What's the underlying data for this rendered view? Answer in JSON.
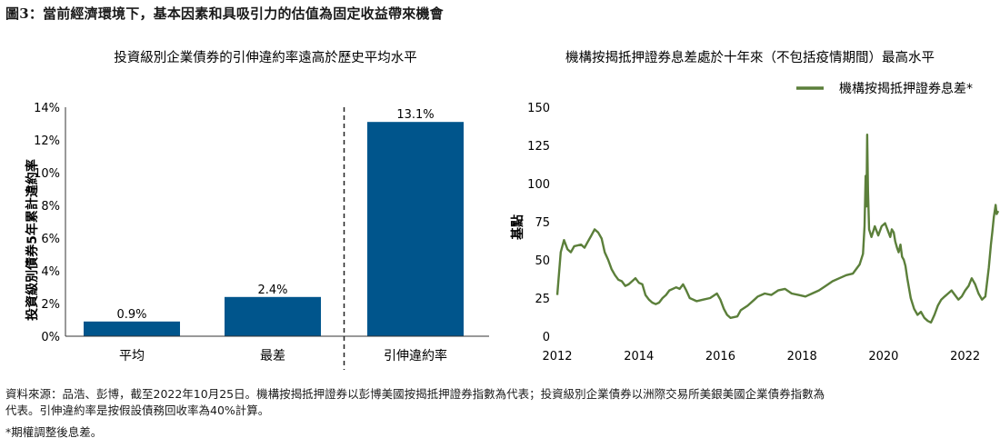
{
  "figure_title": "圖3：當前經濟環境下，基本因素和具吸引力的估值為固定收益帶來機會",
  "footnote_source": "資料來源：品浩、彭博，截至2022年10月25日。機構按揭抵押證券以彭博美國按揭抵押證券指數為代表；投資級別企業債券以洲際交易所美銀美國企業債券指數為",
  "footnote_source_cont": "代表。引伸違約率是按假設債務回收率為40%計算。",
  "footnote_note": "*期權調整後息差。",
  "chart_data": [
    {
      "type": "bar",
      "title": "投資級別企業債券的引伸違約率遠高於歷史平均水平",
      "ylabel": "投資級別債券5年累計違約率",
      "xlabel": "",
      "categories": [
        "平均",
        "最差",
        "引伸違約率"
      ],
      "values": [
        0.9,
        2.4,
        13.1
      ],
      "data_labels": [
        "0.9%",
        "2.4%",
        "13.1%"
      ],
      "ylim": [
        0,
        14
      ],
      "yticks": [
        "0%",
        "2%",
        "4%",
        "6%",
        "8%",
        "10%",
        "12%",
        "14%"
      ],
      "color": "#00558c",
      "divider_after_category": "最差",
      "grid": false
    },
    {
      "type": "line",
      "title": "機構按揭抵押證券息差處於十年來（不包括疫情期間）最高水平",
      "ylabel": "基點",
      "xlabel": "",
      "ylim": [
        0,
        150
      ],
      "yticks": [
        "0",
        "25",
        "50",
        "75",
        "100",
        "125",
        "150"
      ],
      "xlim": [
        "2012-01-01",
        "2022-11-01"
      ],
      "xticks": [
        "2012",
        "2014",
        "2016",
        "2018",
        "2020",
        "2022"
      ],
      "legend_position": "top-right",
      "grid": false,
      "series": [
        {
          "name": "機構按揭抵押證券息差*",
          "color": "#5b7f3a",
          "points": [
            [
              "2012-01-01",
              27
            ],
            [
              "2012-02-01",
              55
            ],
            [
              "2012-03-01",
              63
            ],
            [
              "2012-04-01",
              57
            ],
            [
              "2012-05-01",
              55
            ],
            [
              "2012-06-01",
              59
            ],
            [
              "2012-08-01",
              60
            ],
            [
              "2012-09-01",
              58
            ],
            [
              "2012-10-01",
              62
            ],
            [
              "2012-11-01",
              66
            ],
            [
              "2012-12-01",
              70
            ],
            [
              "2013-01-01",
              68
            ],
            [
              "2013-02-01",
              64
            ],
            [
              "2013-03-01",
              55
            ],
            [
              "2013-04-01",
              50
            ],
            [
              "2013-05-01",
              44
            ],
            [
              "2013-06-01",
              40
            ],
            [
              "2013-07-01",
              37
            ],
            [
              "2013-08-01",
              36
            ],
            [
              "2013-09-01",
              33
            ],
            [
              "2013-10-01",
              34
            ],
            [
              "2013-11-01",
              36
            ],
            [
              "2013-12-01",
              38
            ],
            [
              "2014-01-01",
              35
            ],
            [
              "2014-02-01",
              34
            ],
            [
              "2014-03-01",
              27
            ],
            [
              "2014-04-01",
              24
            ],
            [
              "2014-05-01",
              22
            ],
            [
              "2014-06-01",
              21
            ],
            [
              "2014-07-01",
              22
            ],
            [
              "2014-08-01",
              25
            ],
            [
              "2014-09-01",
              27
            ],
            [
              "2014-10-01",
              30
            ],
            [
              "2014-12-01",
              32
            ],
            [
              "2015-01-01",
              31
            ],
            [
              "2015-02-01",
              34
            ],
            [
              "2015-03-01",
              30
            ],
            [
              "2015-04-01",
              25
            ],
            [
              "2015-06-01",
              23
            ],
            [
              "2015-08-01",
              24
            ],
            [
              "2015-10-01",
              25
            ],
            [
              "2015-12-01",
              28
            ],
            [
              "2016-01-01",
              24
            ],
            [
              "2016-02-01",
              18
            ],
            [
              "2016-03-01",
              14
            ],
            [
              "2016-04-01",
              12
            ],
            [
              "2016-06-01",
              13
            ],
            [
              "2016-07-01",
              17
            ],
            [
              "2016-09-01",
              20
            ],
            [
              "2016-11-01",
              24
            ],
            [
              "2016-12-01",
              26
            ],
            [
              "2017-02-01",
              28
            ],
            [
              "2017-04-01",
              27
            ],
            [
              "2017-06-01",
              30
            ],
            [
              "2017-08-01",
              31
            ],
            [
              "2017-10-01",
              28
            ],
            [
              "2017-12-01",
              27
            ],
            [
              "2018-02-01",
              26
            ],
            [
              "2018-04-01",
              28
            ],
            [
              "2018-06-01",
              30
            ],
            [
              "2018-08-01",
              33
            ],
            [
              "2018-10-01",
              36
            ],
            [
              "2018-12-01",
              38
            ],
            [
              "2019-02-01",
              40
            ],
            [
              "2019-04-01",
              41
            ],
            [
              "2019-05-01",
              44
            ],
            [
              "2019-06-01",
              47
            ],
            [
              "2019-07-01",
              54
            ],
            [
              "2019-07-15",
              72
            ],
            [
              "2019-07-25",
              105
            ],
            [
              "2019-08-01",
              85
            ],
            [
              "2019-08-08",
              132
            ],
            [
              "2019-08-15",
              95
            ],
            [
              "2019-08-25",
              70
            ],
            [
              "2019-09-15",
              65
            ],
            [
              "2019-10-15",
              72
            ],
            [
              "2019-11-15",
              66
            ],
            [
              "2019-12-15",
              72
            ],
            [
              "2020-01-15",
              74
            ],
            [
              "2020-02-15",
              68
            ],
            [
              "2020-03-01",
              65
            ],
            [
              "2020-03-15",
              70
            ],
            [
              "2020-04-01",
              68
            ],
            [
              "2020-04-15",
              62
            ],
            [
              "2020-05-01",
              58
            ],
            [
              "2020-05-15",
              55
            ],
            [
              "2020-06-01",
              60
            ],
            [
              "2020-06-15",
              52
            ],
            [
              "2020-07-01",
              50
            ],
            [
              "2020-07-15",
              46
            ],
            [
              "2020-08-01",
              38
            ],
            [
              "2020-09-01",
              25
            ],
            [
              "2020-10-01",
              18
            ],
            [
              "2020-11-01",
              14
            ],
            [
              "2020-12-01",
              16
            ],
            [
              "2021-01-01",
              12
            ],
            [
              "2021-02-01",
              10
            ],
            [
              "2021-03-01",
              9
            ],
            [
              "2021-04-01",
              14
            ],
            [
              "2021-05-01",
              20
            ],
            [
              "2021-06-01",
              24
            ],
            [
              "2021-07-01",
              26
            ],
            [
              "2021-08-01",
              28
            ],
            [
              "2021-09-01",
              30
            ],
            [
              "2021-10-01",
              27
            ],
            [
              "2021-11-01",
              24
            ],
            [
              "2021-12-01",
              26
            ],
            [
              "2022-01-01",
              30
            ],
            [
              "2022-02-01",
              33
            ],
            [
              "2022-03-01",
              38
            ],
            [
              "2022-04-01",
              34
            ],
            [
              "2022-05-01",
              28
            ],
            [
              "2022-06-01",
              24
            ],
            [
              "2022-07-01",
              26
            ],
            [
              "2022-08-01",
              45
            ],
            [
              "2022-08-20",
              60
            ],
            [
              "2022-09-01",
              68
            ],
            [
              "2022-09-15",
              78
            ],
            [
              "2022-10-01",
              86
            ],
            [
              "2022-10-10",
              80
            ],
            [
              "2022-10-25",
              82
            ]
          ]
        }
      ]
    }
  ]
}
